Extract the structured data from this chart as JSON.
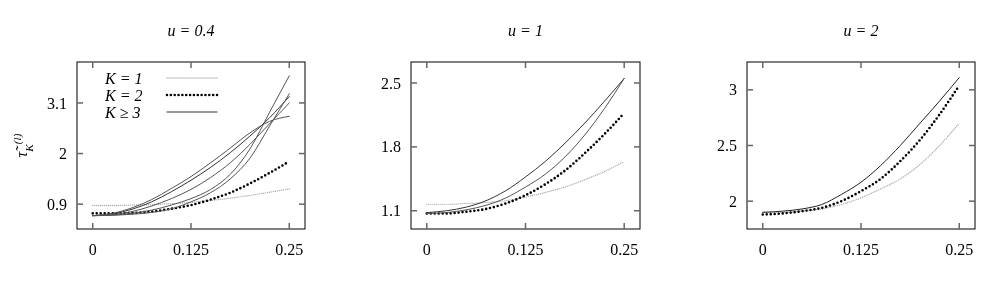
{
  "chart_data": [
    {
      "type": "line",
      "title": "u = 0.4",
      "ylabel": "τ̃$_{K}$$^{(l)}$",
      "xlim": [
        -0.02,
        0.27
      ],
      "ylim": [
        0.36,
        3.99
      ],
      "xticks": [
        0,
        0.125,
        0.25
      ],
      "yticks": [
        0.9,
        2,
        3.1
      ],
      "legend": "top left",
      "marker": "none",
      "x": [
        0,
        0.025,
        0.05,
        0.075,
        0.1,
        0.125,
        0.15,
        0.175,
        0.2,
        0.225,
        0.25
      ],
      "series": [
        {
          "name": "K = 1",
          "color": "#aaaaaa",
          "line_style": "dotted",
          "values": [
            0.87,
            0.87,
            0.88,
            0.89,
            0.91,
            0.94,
            0.98,
            1.03,
            1.09,
            1.16,
            1.23
          ]
        },
        {
          "name": "K = 2",
          "color": "#000000",
          "line_style": "dotted",
          "values": [
            0.7,
            0.7,
            0.71,
            0.74,
            0.8,
            0.88,
            1.0,
            1.15,
            1.35,
            1.58,
            1.83
          ]
        },
        {
          "name": "K ≥ 3",
          "color": "#333333",
          "line_style": "solid",
          "values": [
            0.65,
            0.69,
            0.79,
            0.95,
            1.17,
            1.42,
            1.7,
            2.02,
            2.38,
            2.78,
            3.24
          ]
        },
        {
          "color": "#555555",
          "line_style": "solid",
          "values": [
            0.65,
            0.66,
            0.7,
            0.77,
            0.88,
            1.02,
            1.22,
            1.55,
            2.1,
            2.9,
            3.69
          ]
        },
        {
          "color": "#555555",
          "line_style": "solid",
          "values": [
            0.65,
            0.7,
            0.82,
            1.0,
            1.24,
            1.5,
            1.8,
            2.12,
            2.45,
            2.7,
            2.81
          ]
        },
        {
          "color": "#555555",
          "line_style": "solid",
          "values": [
            0.65,
            0.66,
            0.68,
            0.72,
            0.8,
            0.95,
            1.15,
            1.45,
            1.9,
            2.6,
            3.3
          ]
        },
        {
          "color": "#555555",
          "line_style": "solid",
          "values": [
            0.65,
            0.67,
            0.74,
            0.86,
            1.02,
            1.22,
            1.48,
            1.8,
            2.2,
            2.65,
            3.1
          ]
        }
      ]
    },
    {
      "type": "line",
      "title": "u = 1",
      "xlim": [
        -0.02,
        0.27
      ],
      "ylim": [
        0.9,
        2.73
      ],
      "xticks": [
        0,
        0.125,
        0.25
      ],
      "yticks": [
        1.1,
        1.8,
        2.5
      ],
      "legend": false,
      "marker": "none",
      "x": [
        0,
        0.025,
        0.05,
        0.075,
        0.1,
        0.125,
        0.15,
        0.175,
        0.2,
        0.225,
        0.25
      ],
      "series": [
        {
          "color": "#aaaaaa",
          "line_style": "dotted",
          "values": [
            1.17,
            1.17,
            1.18,
            1.19,
            1.21,
            1.25,
            1.3,
            1.36,
            1.44,
            1.53,
            1.64
          ]
        },
        {
          "color": "#000000",
          "line_style": "dotted",
          "values": [
            1.07,
            1.07,
            1.09,
            1.12,
            1.18,
            1.27,
            1.39,
            1.54,
            1.73,
            1.94,
            2.17
          ]
        },
        {
          "color": "#333333",
          "line_style": "solid",
          "values": [
            1.08,
            1.1,
            1.14,
            1.21,
            1.32,
            1.47,
            1.64,
            1.84,
            2.06,
            2.3,
            2.55
          ]
        },
        {
          "color": "#555555",
          "line_style": "solid",
          "values": [
            1.07,
            1.08,
            1.11,
            1.16,
            1.24,
            1.36,
            1.5,
            1.69,
            1.93,
            2.22,
            2.55
          ]
        }
      ]
    },
    {
      "type": "line",
      "title": "u = 2",
      "xlim": [
        -0.02,
        0.27
      ],
      "ylim": [
        1.75,
        3.25
      ],
      "xticks": [
        0,
        0.125,
        0.25
      ],
      "yticks": [
        2,
        2.5,
        3
      ],
      "legend": false,
      "marker": "none",
      "x": [
        0,
        0.025,
        0.05,
        0.075,
        0.1,
        0.125,
        0.15,
        0.175,
        0.2,
        0.225,
        0.25
      ],
      "series": [
        {
          "color": "#aaaaaa",
          "line_style": "dotted",
          "values": [
            1.9,
            1.9,
            1.91,
            1.93,
            1.97,
            2.03,
            2.11,
            2.2,
            2.33,
            2.5,
            2.7
          ]
        },
        {
          "color": "#000000",
          "line_style": "dotted",
          "values": [
            1.88,
            1.89,
            1.91,
            1.94,
            2.0,
            2.09,
            2.2,
            2.36,
            2.55,
            2.78,
            3.04
          ]
        },
        {
          "color": "#222222",
          "line_style": "solid",
          "values": [
            1.9,
            1.91,
            1.93,
            1.97,
            2.06,
            2.17,
            2.32,
            2.5,
            2.7,
            2.9,
            3.11
          ]
        }
      ]
    }
  ]
}
